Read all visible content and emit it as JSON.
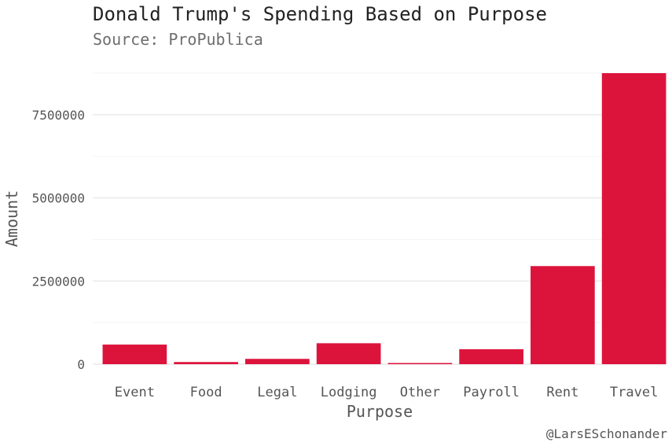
{
  "chart_data": {
    "type": "bar",
    "title": "Donald Trump's Spending Based on Purpose",
    "subtitle": "Source: ProPublica",
    "xlabel": "Purpose",
    "ylabel": "Amount",
    "caption": "@LarsESchonander",
    "categories": [
      "Event",
      "Food",
      "Legal",
      "Lodging",
      "Other",
      "Payroll",
      "Rent",
      "Travel"
    ],
    "values": [
      590000,
      65000,
      160000,
      630000,
      20000,
      450000,
      2950000,
      8750000
    ],
    "yticks": [
      0,
      2500000,
      5000000,
      7500000
    ],
    "ylim": [
      0,
      8750000
    ],
    "bar_color": "#dc143c",
    "grid": true,
    "legend": "none"
  }
}
